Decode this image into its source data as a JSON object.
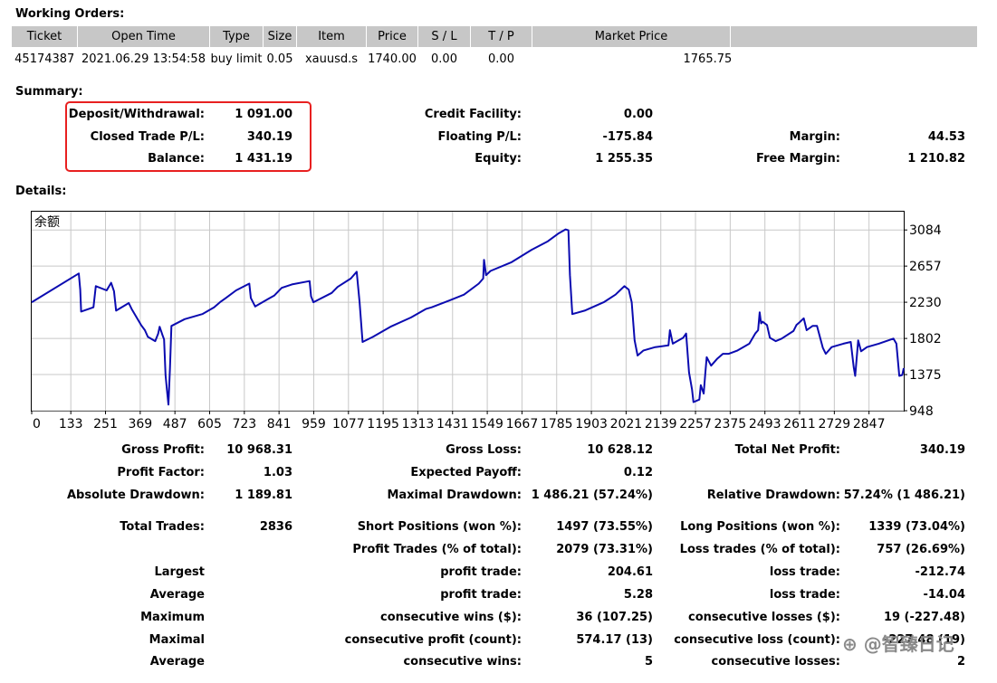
{
  "working_orders": {
    "title": "Working Orders:",
    "headers": [
      "Ticket",
      "Open Time",
      "Type",
      "Size",
      "Item",
      "Price",
      "S / L",
      "T / P",
      "Market Price",
      ""
    ],
    "rows": [
      [
        "45174387",
        "2021.06.29 13:54:58",
        "buy limit",
        "0.05",
        "xauusd.s",
        "1740.00",
        "0.00",
        "0.00",
        "",
        "1765.75"
      ]
    ]
  },
  "summary": {
    "title": "Summary:",
    "deposit_withdrawal": {
      "label": "Deposit/Withdrawal:",
      "value": "1 091.00"
    },
    "closed_trade_pl": {
      "label": "Closed Trade P/L:",
      "value": "340.19"
    },
    "balance": {
      "label": "Balance:",
      "value": "1 431.19"
    },
    "credit_facility": {
      "label": "Credit Facility:",
      "value": "0.00"
    },
    "floating_pl": {
      "label": "Floating P/L:",
      "value": "-175.84"
    },
    "equity": {
      "label": "Equity:",
      "value": "1 255.35"
    },
    "margin": {
      "label": "Margin:",
      "value": "44.53"
    },
    "free_margin": {
      "label": "Free Margin:",
      "value": "1 210.82"
    }
  },
  "details": {
    "title": "Details:",
    "rows": [
      [
        {
          "label": "Gross Profit:",
          "value": "10 968.31"
        },
        {
          "label": "Gross Loss:",
          "value": "10 628.12"
        },
        {
          "label": "Total Net Profit:",
          "value": "340.19"
        }
      ],
      [
        {
          "label": "Profit Factor:",
          "value": "1.03"
        },
        {
          "label": "Expected Payoff:",
          "value": "0.12"
        },
        {
          "label": "",
          "value": ""
        }
      ],
      [
        {
          "label": "Absolute Drawdown:",
          "value": "1 189.81"
        },
        {
          "label": "Maximal Drawdown:",
          "value": "1 486.21 (57.24%)"
        },
        {
          "label": "Relative Drawdown:",
          "value": "57.24% (1 486.21)"
        }
      ],
      [
        {
          "label": "Total Trades:",
          "value": "2836"
        },
        {
          "label": "Short Positions (won %):",
          "value": "1497 (73.55%)"
        },
        {
          "label": "Long Positions (won %):",
          "value": "1339 (73.04%)"
        }
      ],
      [
        {
          "label": "",
          "value": ""
        },
        {
          "label": "Profit Trades (% of total):",
          "value": "2079 (73.31%)"
        },
        {
          "label": "Loss trades (% of total):",
          "value": "757 (26.69%)"
        }
      ],
      [
        {
          "label": "Largest",
          "value": ""
        },
        {
          "label": "profit trade:",
          "value": "204.61"
        },
        {
          "label": "loss trade:",
          "value": "-212.74"
        }
      ],
      [
        {
          "label": "Average",
          "value": ""
        },
        {
          "label": "profit trade:",
          "value": "5.28"
        },
        {
          "label": "loss trade:",
          "value": "-14.04"
        }
      ],
      [
        {
          "label": "Maximum",
          "value": ""
        },
        {
          "label": "consecutive wins ($):",
          "value": "36 (107.25)"
        },
        {
          "label": "consecutive losses ($):",
          "value": "19 (-227.48)"
        }
      ],
      [
        {
          "label": "Maximal",
          "value": ""
        },
        {
          "label": "consecutive profit (count):",
          "value": "574.17 (13)"
        },
        {
          "label": "consecutive loss (count):",
          "value": "-227.48 (19)"
        }
      ],
      [
        {
          "label": "Average",
          "value": ""
        },
        {
          "label": "consecutive wins:",
          "value": "5"
        },
        {
          "label": "consecutive losses:",
          "value": "2"
        }
      ]
    ]
  },
  "watermark": "⊕ @智臻日记",
  "colors": {
    "line": "#0b0bb0",
    "grid": "#c8c8c8",
    "highlight_box": "#e82020",
    "header_bg": "#c7c7c7"
  },
  "chart_data": {
    "type": "line",
    "title": "余额",
    "xlabel": "",
    "ylabel": "",
    "x_ticks": [
      "0",
      "133",
      "251",
      "369",
      "487",
      "605",
      "723",
      "841",
      "959",
      "1077",
      "1195",
      "1313",
      "1431",
      "1549",
      "1667",
      "1785",
      "1903",
      "2021",
      "2139",
      "2257",
      "2375",
      "2493",
      "2611",
      "2729",
      "2847"
    ],
    "y_ticks": [
      948,
      1375,
      1802,
      2230,
      2657,
      3084
    ],
    "xlim": [
      0,
      2965
    ],
    "ylim": [
      948,
      3300
    ],
    "grid": true,
    "series": [
      {
        "values": [
          [
            0,
            2230
          ],
          [
            160,
            2570
          ],
          [
            165,
            2380
          ],
          [
            168,
            2120
          ],
          [
            210,
            2170
          ],
          [
            218,
            2420
          ],
          [
            255,
            2370
          ],
          [
            270,
            2460
          ],
          [
            280,
            2360
          ],
          [
            287,
            2130
          ],
          [
            330,
            2220
          ],
          [
            340,
            2150
          ],
          [
            372,
            1960
          ],
          [
            385,
            1900
          ],
          [
            395,
            1820
          ],
          [
            420,
            1770
          ],
          [
            430,
            1860
          ],
          [
            435,
            1940
          ],
          [
            445,
            1840
          ],
          [
            450,
            1790
          ],
          [
            455,
            1370
          ],
          [
            460,
            1190
          ],
          [
            465,
            1020
          ],
          [
            470,
            1450
          ],
          [
            475,
            1950
          ],
          [
            520,
            2030
          ],
          [
            580,
            2090
          ],
          [
            620,
            2170
          ],
          [
            640,
            2230
          ],
          [
            660,
            2280
          ],
          [
            695,
            2370
          ],
          [
            740,
            2450
          ],
          [
            745,
            2280
          ],
          [
            760,
            2180
          ],
          [
            805,
            2270
          ],
          [
            825,
            2310
          ],
          [
            850,
            2400
          ],
          [
            885,
            2440
          ],
          [
            945,
            2480
          ],
          [
            950,
            2300
          ],
          [
            958,
            2230
          ],
          [
            1020,
            2340
          ],
          [
            1040,
            2410
          ],
          [
            1085,
            2510
          ],
          [
            1105,
            2590
          ],
          [
            1115,
            2230
          ],
          [
            1125,
            1760
          ],
          [
            1160,
            1820
          ],
          [
            1195,
            1890
          ],
          [
            1220,
            1940
          ],
          [
            1290,
            2050
          ],
          [
            1340,
            2150
          ],
          [
            1360,
            2170
          ],
          [
            1420,
            2250
          ],
          [
            1470,
            2320
          ],
          [
            1520,
            2450
          ],
          [
            1535,
            2510
          ],
          [
            1538,
            2730
          ],
          [
            1545,
            2550
          ],
          [
            1560,
            2600
          ],
          [
            1630,
            2700
          ],
          [
            1700,
            2850
          ],
          [
            1755,
            2950
          ],
          [
            1790,
            3040
          ],
          [
            1815,
            3090
          ],
          [
            1825,
            3080
          ],
          [
            1830,
            2550
          ],
          [
            1838,
            2090
          ],
          [
            1880,
            2130
          ],
          [
            1945,
            2230
          ],
          [
            1985,
            2320
          ],
          [
            2000,
            2370
          ],
          [
            2015,
            2420
          ],
          [
            2030,
            2380
          ],
          [
            2040,
            2230
          ],
          [
            2050,
            1780
          ],
          [
            2060,
            1600
          ],
          [
            2080,
            1660
          ],
          [
            2120,
            1700
          ],
          [
            2165,
            1720
          ],
          [
            2170,
            1900
          ],
          [
            2180,
            1740
          ],
          [
            2215,
            1810
          ],
          [
            2225,
            1860
          ],
          [
            2235,
            1400
          ],
          [
            2245,
            1200
          ],
          [
            2250,
            1050
          ],
          [
            2270,
            1080
          ],
          [
            2275,
            1250
          ],
          [
            2285,
            1150
          ],
          [
            2290,
            1380
          ],
          [
            2295,
            1580
          ],
          [
            2310,
            1480
          ],
          [
            2330,
            1560
          ],
          [
            2350,
            1620
          ],
          [
            2370,
            1620
          ],
          [
            2400,
            1660
          ],
          [
            2440,
            1740
          ],
          [
            2460,
            1860
          ],
          [
            2470,
            1900
          ],
          [
            2475,
            2110
          ],
          [
            2480,
            1980
          ],
          [
            2485,
            2000
          ],
          [
            2500,
            1960
          ],
          [
            2510,
            1810
          ],
          [
            2530,
            1770
          ],
          [
            2550,
            1800
          ],
          [
            2590,
            1890
          ],
          [
            2600,
            1960
          ],
          [
            2610,
            1990
          ],
          [
            2625,
            2040
          ],
          [
            2635,
            1900
          ],
          [
            2655,
            1950
          ],
          [
            2670,
            1950
          ],
          [
            2690,
            1690
          ],
          [
            2700,
            1620
          ],
          [
            2720,
            1700
          ],
          [
            2760,
            1740
          ],
          [
            2785,
            1760
          ],
          [
            2795,
            1460
          ],
          [
            2800,
            1360
          ],
          [
            2810,
            1780
          ],
          [
            2820,
            1650
          ],
          [
            2840,
            1700
          ],
          [
            2880,
            1740
          ],
          [
            2930,
            1800
          ],
          [
            2940,
            1740
          ],
          [
            2950,
            1360
          ],
          [
            2960,
            1370
          ],
          [
            2965,
            1450
          ]
        ]
      }
    ]
  }
}
